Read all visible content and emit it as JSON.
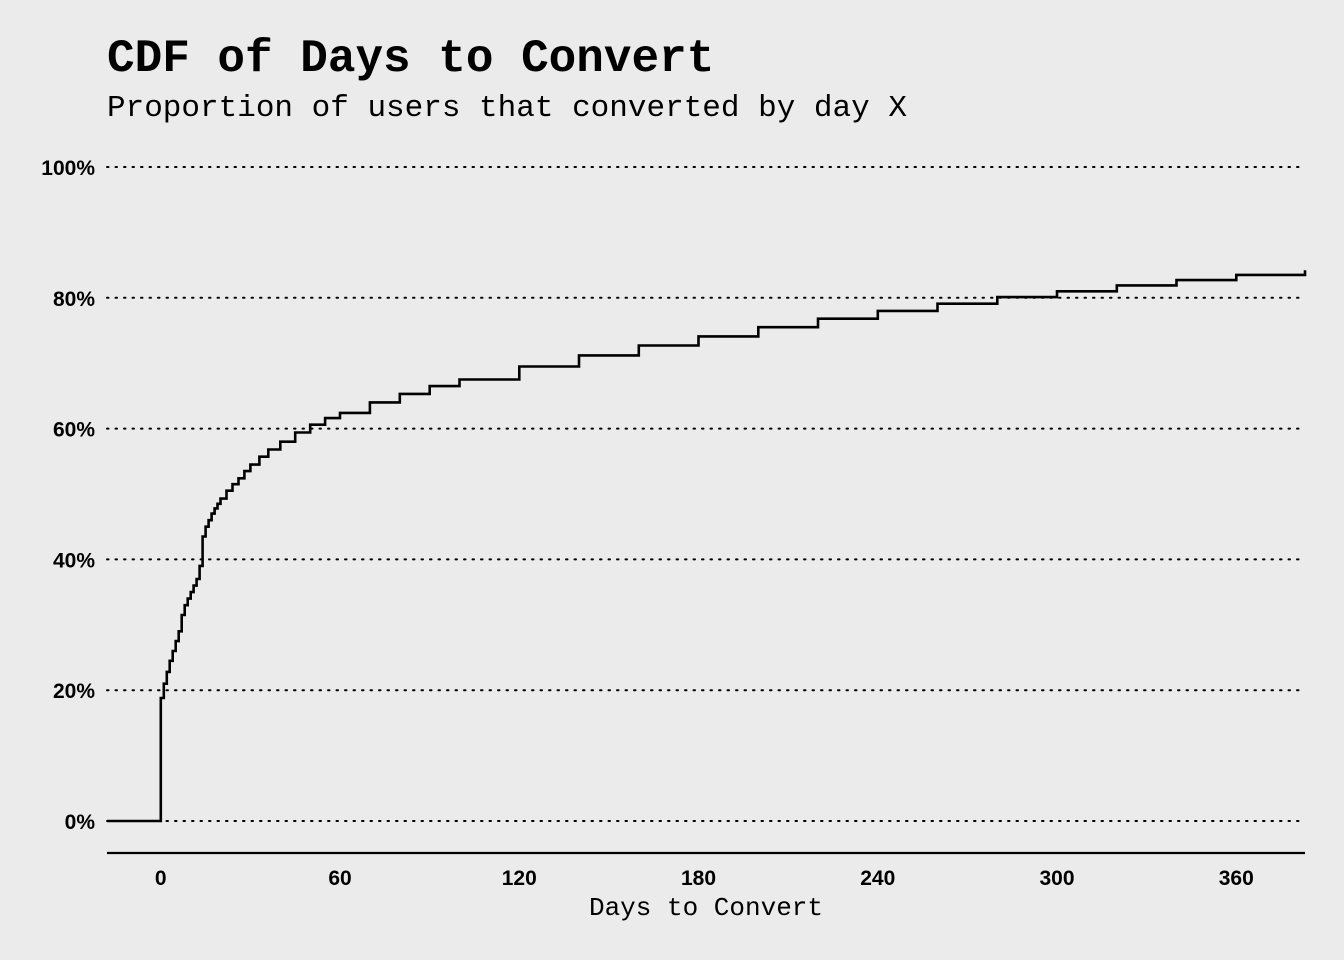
{
  "chart_data": {
    "type": "line",
    "step": true,
    "title": "CDF of Days to Convert",
    "subtitle": "Proportion of users that converted by day X",
    "xlabel": "Days to Convert",
    "ylabel": "",
    "xlim": [
      -18,
      383
    ],
    "ylim": [
      -0.05,
      1.0
    ],
    "x_ticks": [
      0,
      60,
      120,
      180,
      240,
      300,
      360
    ],
    "y_ticks": [
      0,
      0.2,
      0.4,
      0.6,
      0.8,
      1.0
    ],
    "y_tick_labels": [
      "0%",
      "20%",
      "40%",
      "60%",
      "80%",
      "100%"
    ],
    "grid": "horizontal-dotted",
    "legend": "none",
    "series": [
      {
        "x": [
          -18,
          0,
          1,
          2,
          3,
          4,
          5,
          6,
          7,
          8,
          9,
          10,
          11,
          12,
          13,
          14,
          15,
          16,
          17,
          18,
          19,
          20,
          22,
          24,
          26,
          28,
          30,
          33,
          36,
          40,
          45,
          50,
          55,
          60,
          70,
          80,
          90,
          100,
          120,
          140,
          160,
          180,
          200,
          220,
          240,
          260,
          280,
          300,
          320,
          340,
          360,
          383
        ],
        "y": [
          0.0,
          0.188,
          0.21,
          0.228,
          0.245,
          0.26,
          0.275,
          0.29,
          0.315,
          0.33,
          0.34,
          0.35,
          0.36,
          0.37,
          0.39,
          0.435,
          0.45,
          0.46,
          0.47,
          0.478,
          0.485,
          0.493,
          0.505,
          0.515,
          0.524,
          0.535,
          0.545,
          0.557,
          0.568,
          0.58,
          0.594,
          0.606,
          0.616,
          0.624,
          0.64,
          0.653,
          0.665,
          0.675,
          0.695,
          0.712,
          0.727,
          0.741,
          0.755,
          0.768,
          0.78,
          0.791,
          0.801,
          0.81,
          0.819,
          0.827,
          0.835,
          0.842
        ]
      }
    ]
  }
}
